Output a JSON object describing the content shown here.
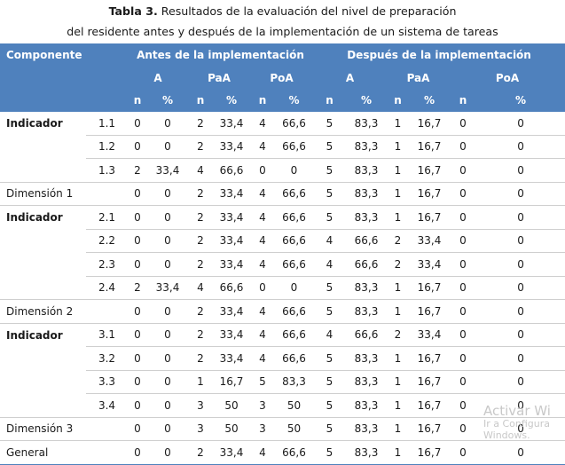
{
  "caption": {
    "label": "Tabla 3.",
    "line1": " Resultados de la evaluación del nivel de preparación",
    "line2": "del residente antes y después de la implementación de un sistema de tareas"
  },
  "header": {
    "componente": "Componente",
    "antes": "Antes de la implementación",
    "despues": "Después de la implementación",
    "groups": [
      "A",
      "PaA",
      "PoA",
      "A",
      "PaA",
      "PoA"
    ],
    "n": "n",
    "pct": "%"
  },
  "rows": [
    {
      "label": "Indicador",
      "bold": true,
      "num": "1.1",
      "vals": [
        "0",
        "0",
        "2",
        "33,4",
        "4",
        "66,6",
        "5",
        "83,3",
        "1",
        "16,7",
        "0",
        "0"
      ]
    },
    {
      "label": "",
      "bold": false,
      "num": "1.2",
      "vals": [
        "0",
        "0",
        "2",
        "33,4",
        "4",
        "66,6",
        "5",
        "83,3",
        "1",
        "16,7",
        "0",
        "0"
      ]
    },
    {
      "label": "",
      "bold": false,
      "num": "1.3",
      "vals": [
        "2",
        "33,4",
        "4",
        "66,6",
        "0",
        "0",
        "5",
        "83,3",
        "1",
        "16,7",
        "0",
        "0"
      ]
    },
    {
      "label": "Dimensión 1",
      "bold": false,
      "num": "",
      "vals": [
        "0",
        "0",
        "2",
        "33,4",
        "4",
        "66,6",
        "5",
        "83,3",
        "1",
        "16,7",
        "0",
        "0"
      ]
    },
    {
      "label": "Indicador",
      "bold": true,
      "num": "2.1",
      "vals": [
        "0",
        "0",
        "2",
        "33,4",
        "4",
        "66,6",
        "5",
        "83,3",
        "1",
        "16,7",
        "0",
        "0"
      ]
    },
    {
      "label": "",
      "bold": false,
      "num": "2.2",
      "vals": [
        "0",
        "0",
        "2",
        "33,4",
        "4",
        "66,6",
        "4",
        "66,6",
        "2",
        "33,4",
        "0",
        "0"
      ]
    },
    {
      "label": "",
      "bold": false,
      "num": "2.3",
      "vals": [
        "0",
        "0",
        "2",
        "33,4",
        "4",
        "66,6",
        "4",
        "66,6",
        "2",
        "33,4",
        "0",
        "0"
      ]
    },
    {
      "label": "",
      "bold": false,
      "num": "2.4",
      "vals": [
        "2",
        "33,4",
        "4",
        "66,6",
        "0",
        "0",
        "5",
        "83,3",
        "1",
        "16,7",
        "0",
        "0"
      ]
    },
    {
      "label": "Dimensión 2",
      "bold": false,
      "num": "",
      "vals": [
        "0",
        "0",
        "2",
        "33,4",
        "4",
        "66,6",
        "5",
        "83,3",
        "1",
        "16,7",
        "0",
        "0"
      ]
    },
    {
      "label": "Indicador",
      "bold": true,
      "num": "3.1",
      "vals": [
        "0",
        "0",
        "2",
        "33,4",
        "4",
        "66,6",
        "4",
        "66,6",
        "2",
        "33,4",
        "0",
        "0"
      ]
    },
    {
      "label": "",
      "bold": false,
      "num": "3.2",
      "vals": [
        "0",
        "0",
        "2",
        "33,4",
        "4",
        "66,6",
        "5",
        "83,3",
        "1",
        "16,7",
        "0",
        "0"
      ]
    },
    {
      "label": "",
      "bold": false,
      "num": "3.3",
      "vals": [
        "0",
        "0",
        "1",
        "16,7",
        "5",
        "83,3",
        "5",
        "83,3",
        "1",
        "16,7",
        "0",
        "0"
      ]
    },
    {
      "label": "",
      "bold": false,
      "num": "3.4",
      "vals": [
        "0",
        "0",
        "3",
        "50",
        "3",
        "50",
        "5",
        "83,3",
        "1",
        "16,7",
        "0",
        "0"
      ]
    },
    {
      "label": "Dimensión 3",
      "bold": false,
      "num": "",
      "vals": [
        "0",
        "0",
        "3",
        "50",
        "3",
        "50",
        "5",
        "83,3",
        "1",
        "16,7",
        "0",
        "0"
      ]
    },
    {
      "label": "General",
      "bold": false,
      "num": "",
      "vals": [
        "0",
        "0",
        "2",
        "33,4",
        "4",
        "66,6",
        "5",
        "83,3",
        "1",
        "16,7",
        "0",
        "0"
      ]
    }
  ],
  "watermark": {
    "line1": "Activar Wi",
    "line2": "Ir a Configura",
    "line3": "Windows."
  }
}
